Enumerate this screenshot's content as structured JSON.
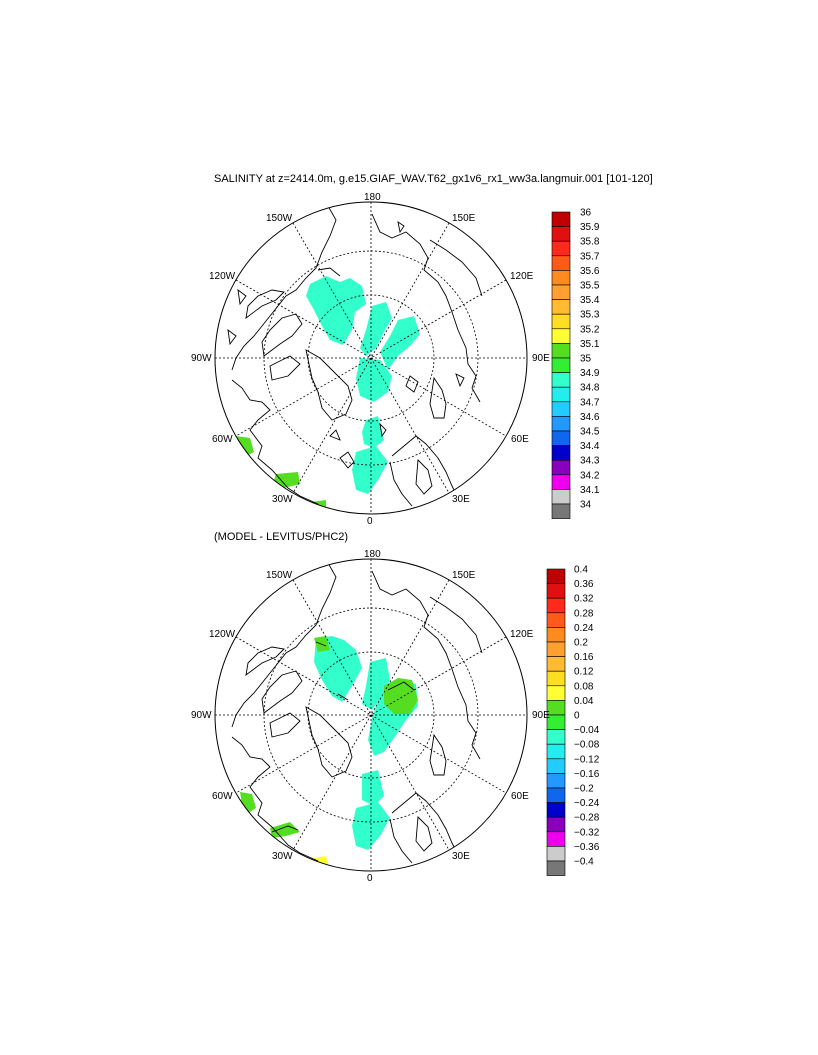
{
  "title": "SALINITY at z=2414.0m, g.e15.GIAF_WAV.T62_gx1v6_rx1_ww3a.langmuir.001 [101-120]",
  "subtitle": "(MODEL - LEVITUS/PHC2)",
  "longitude_labels": {
    "top": "180",
    "bottom": "0",
    "left": "90W",
    "right": "90E",
    "upper_left": "150W",
    "upper_right": "150E",
    "mid_upper_left": "120W",
    "mid_upper_right": "120E",
    "mid_lower_left": "60W",
    "mid_lower_right": "60E",
    "lower_left": "30W",
    "lower_right": "30E"
  },
  "colorbar_top": {
    "labels": [
      "36",
      "35.9",
      "35.8",
      "35.7",
      "35.6",
      "35.5",
      "35.4",
      "35.3",
      "35.2",
      "35.1",
      "35",
      "34.9",
      "34.8",
      "34.7",
      "34.6",
      "34.5",
      "34.4",
      "34.3",
      "34.2",
      "34.1",
      "34"
    ],
    "colors": [
      "#c00000",
      "#e01010",
      "#ff2a1a",
      "#ff5a1a",
      "#ff8a20",
      "#ffa030",
      "#ffbb33",
      "#ffdd22",
      "#ffff33",
      "#55dd22",
      "#33ee33",
      "#33ffcc",
      "#22eeee",
      "#22ccff",
      "#2299ff",
      "#1166ee",
      "#0000cc",
      "#8800bb",
      "#ee00ee",
      "#cccccc",
      "#777777"
    ]
  },
  "colorbar_bottom": {
    "labels": [
      "0.4",
      "0.36",
      "0.32",
      "0.28",
      "0.24",
      "0.2",
      "0.16",
      "0.12",
      "0.08",
      "0.04",
      "0",
      "−0.04",
      "−0.08",
      "−0.12",
      "−0.16",
      "−0.2",
      "−0.24",
      "−0.28",
      "−0.32",
      "−0.36",
      "−0.4"
    ],
    "colors": [
      "#c00000",
      "#e01010",
      "#ff2a1a",
      "#ff5a1a",
      "#ff8a20",
      "#ffa030",
      "#ffbb33",
      "#ffdd22",
      "#ffff33",
      "#55dd22",
      "#33ee33",
      "#33ffcc",
      "#22eeee",
      "#22ccff",
      "#2299ff",
      "#1166ee",
      "#0000cc",
      "#8800bb",
      "#ee00ee",
      "#cccccc",
      "#777777"
    ]
  },
  "field_color": "#33ffcc",
  "anomaly_pos_color": "#55dd22",
  "anomaly_high_color": "#ffff33"
}
